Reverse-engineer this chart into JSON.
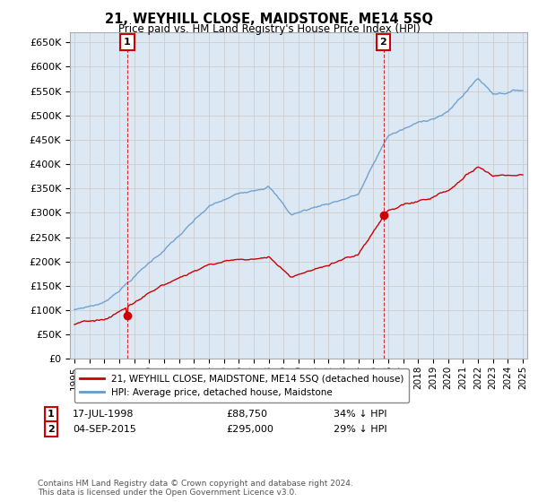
{
  "title": "21, WEYHILL CLOSE, MAIDSTONE, ME14 5SQ",
  "subtitle": "Price paid vs. HM Land Registry's House Price Index (HPI)",
  "ylabel_ticks": [
    "£0",
    "£50K",
    "£100K",
    "£150K",
    "£200K",
    "£250K",
    "£300K",
    "£350K",
    "£400K",
    "£450K",
    "£500K",
    "£550K",
    "£600K",
    "£650K"
  ],
  "ylim": [
    0,
    670000
  ],
  "xlim_start": 1994.7,
  "xlim_end": 2025.3,
  "hpi_color": "#6699cc",
  "price_color": "#cc0000",
  "chart_bg": "#dce9f5",
  "purchase1_x": 1998.54,
  "purchase1_y": 88750,
  "purchase1_label": "1",
  "purchase2_x": 2015.67,
  "purchase2_y": 295000,
  "purchase2_label": "2",
  "legend_line1": "21, WEYHILL CLOSE, MAIDSTONE, ME14 5SQ (detached house)",
  "legend_line2": "HPI: Average price, detached house, Maidstone",
  "annotation1_date": "17-JUL-1998",
  "annotation1_price": "£88,750",
  "annotation1_hpi": "34% ↓ HPI",
  "annotation2_date": "04-SEP-2015",
  "annotation2_price": "£295,000",
  "annotation2_hpi": "29% ↓ HPI",
  "footnote": "Contains HM Land Registry data © Crown copyright and database right 2024.\nThis data is licensed under the Open Government Licence v3.0.",
  "background_color": "#ffffff",
  "grid_color": "#cccccc"
}
